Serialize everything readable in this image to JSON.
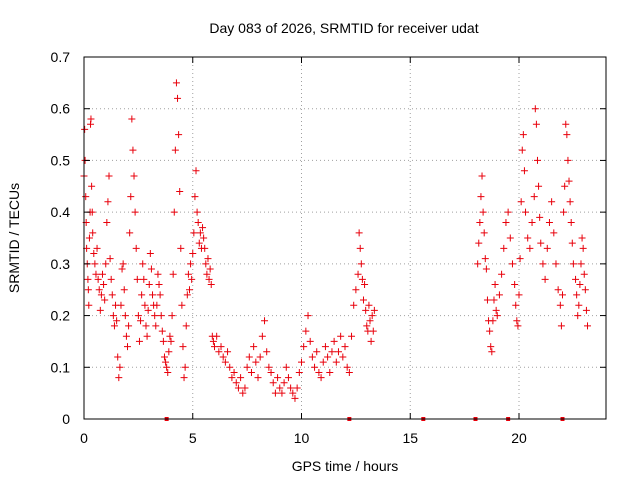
{
  "chart_data": {
    "type": "scatter",
    "title": "Day 083 of 2026, SRMTID for receiver udat",
    "xlabel": "GPS time / hours",
    "ylabel": "SRMTID / TECUs",
    "xlim": [
      0,
      24
    ],
    "ylim": [
      0,
      0.7
    ],
    "xticks": [
      0,
      5,
      10,
      15,
      20
    ],
    "xtick_labels": [
      "0",
      "5",
      "10",
      "15",
      "20"
    ],
    "yticks": [
      0,
      0.1,
      0.2,
      0.3,
      0.4,
      0.5,
      0.6,
      0.7
    ],
    "ytick_labels": [
      "0",
      "0.1",
      "0.2",
      "0.3",
      "0.4",
      "0.5",
      "0.6",
      "0.7"
    ],
    "grid": true,
    "marker": "+",
    "color": "#e8000b",
    "series": [
      {
        "name": "SRMTID",
        "points": [
          [
            0.0,
            0.47
          ],
          [
            0.03,
            0.56
          ],
          [
            0.05,
            0.5
          ],
          [
            0.08,
            0.43
          ],
          [
            0.1,
            0.38
          ],
          [
            0.12,
            0.33
          ],
          [
            0.15,
            0.3
          ],
          [
            0.18,
            0.27
          ],
          [
            0.2,
            0.25
          ],
          [
            0.22,
            0.22
          ],
          [
            0.25,
            0.35
          ],
          [
            0.28,
            0.4
          ],
          [
            0.3,
            0.57
          ],
          [
            0.32,
            0.58
          ],
          [
            0.35,
            0.45
          ],
          [
            0.38,
            0.4
          ],
          [
            0.4,
            0.36
          ],
          [
            0.45,
            0.32
          ],
          [
            0.5,
            0.3
          ],
          [
            0.55,
            0.28
          ],
          [
            0.6,
            0.33
          ],
          [
            0.65,
            0.27
          ],
          [
            0.7,
            0.25
          ],
          [
            0.75,
            0.21
          ],
          [
            0.8,
            0.24
          ],
          [
            0.85,
            0.28
          ],
          [
            0.9,
            0.26
          ],
          [
            0.95,
            0.23
          ],
          [
            1.0,
            0.3
          ],
          [
            1.05,
            0.38
          ],
          [
            1.1,
            0.42
          ],
          [
            1.15,
            0.47
          ],
          [
            1.2,
            0.31
          ],
          [
            1.25,
            0.27
          ],
          [
            1.3,
            0.24
          ],
          [
            1.35,
            0.2
          ],
          [
            1.4,
            0.18
          ],
          [
            1.45,
            0.22
          ],
          [
            1.5,
            0.19
          ],
          [
            1.55,
            0.12
          ],
          [
            1.6,
            0.08
          ],
          [
            1.65,
            0.1
          ],
          [
            1.7,
            0.22
          ],
          [
            1.75,
            0.29
          ],
          [
            1.8,
            0.3
          ],
          [
            1.85,
            0.25
          ],
          [
            1.9,
            0.2
          ],
          [
            1.95,
            0.16
          ],
          [
            2.0,
            0.14
          ],
          [
            2.05,
            0.18
          ],
          [
            2.1,
            0.36
          ],
          [
            2.15,
            0.43
          ],
          [
            2.2,
            0.58
          ],
          [
            2.25,
            0.52
          ],
          [
            2.3,
            0.47
          ],
          [
            2.35,
            0.4
          ],
          [
            2.4,
            0.33
          ],
          [
            2.45,
            0.27
          ],
          [
            2.5,
            0.2
          ],
          [
            2.55,
            0.15
          ],
          [
            2.6,
            0.19
          ],
          [
            2.65,
            0.24
          ],
          [
            2.7,
            0.3
          ],
          [
            2.75,
            0.27
          ],
          [
            2.8,
            0.22
          ],
          [
            2.85,
            0.18
          ],
          [
            2.9,
            0.16
          ],
          [
            2.95,
            0.21
          ],
          [
            3.0,
            0.26
          ],
          [
            3.05,
            0.32
          ],
          [
            3.1,
            0.29
          ],
          [
            3.15,
            0.24
          ],
          [
            3.2,
            0.22
          ],
          [
            3.25,
            0.2
          ],
          [
            3.3,
            0.18
          ],
          [
            3.35,
            0.22
          ],
          [
            3.4,
            0.28
          ],
          [
            3.45,
            0.26
          ],
          [
            3.5,
            0.24
          ],
          [
            3.55,
            0.2
          ],
          [
            3.6,
            0.17
          ],
          [
            3.65,
            0.15
          ],
          [
            3.7,
            0.12
          ],
          [
            3.75,
            0.11
          ],
          [
            3.8,
            0.1
          ],
          [
            3.85,
            0.09
          ],
          [
            3.9,
            0.13
          ],
          [
            3.95,
            0.16
          ],
          [
            4.0,
            0.15
          ],
          [
            4.05,
            0.2
          ],
          [
            4.1,
            0.28
          ],
          [
            4.15,
            0.4
          ],
          [
            4.2,
            0.52
          ],
          [
            4.25,
            0.65
          ],
          [
            4.3,
            0.62
          ],
          [
            4.35,
            0.55
          ],
          [
            4.4,
            0.44
          ],
          [
            4.45,
            0.33
          ],
          [
            4.5,
            0.22
          ],
          [
            4.55,
            0.14
          ],
          [
            4.6,
            0.08
          ],
          [
            4.65,
            0.1
          ],
          [
            4.7,
            0.18
          ],
          [
            4.75,
            0.24
          ],
          [
            4.8,
            0.28
          ],
          [
            4.85,
            0.25
          ],
          [
            4.9,
            0.3
          ],
          [
            4.95,
            0.27
          ],
          [
            5.0,
            0.32
          ],
          [
            5.05,
            0.36
          ],
          [
            5.1,
            0.43
          ],
          [
            5.15,
            0.48
          ],
          [
            5.2,
            0.4
          ],
          [
            5.25,
            0.38
          ],
          [
            5.3,
            0.34
          ],
          [
            5.35,
            0.36
          ],
          [
            5.4,
            0.33
          ],
          [
            5.45,
            0.37
          ],
          [
            5.5,
            0.35
          ],
          [
            5.55,
            0.33
          ],
          [
            5.6,
            0.3
          ],
          [
            5.65,
            0.28
          ],
          [
            5.7,
            0.31
          ],
          [
            5.75,
            0.27
          ],
          [
            5.8,
            0.29
          ],
          [
            5.85,
            0.26
          ],
          [
            5.9,
            0.16
          ],
          [
            5.95,
            0.15
          ],
          [
            6.0,
            0.14
          ],
          [
            6.1,
            0.16
          ],
          [
            6.2,
            0.13
          ],
          [
            6.3,
            0.14
          ],
          [
            6.4,
            0.12
          ],
          [
            6.5,
            0.11
          ],
          [
            6.6,
            0.13
          ],
          [
            6.7,
            0.1
          ],
          [
            6.8,
            0.08
          ],
          [
            6.9,
            0.09
          ],
          [
            7.0,
            0.07
          ],
          [
            7.1,
            0.06
          ],
          [
            7.2,
            0.08
          ],
          [
            7.3,
            0.05
          ],
          [
            7.4,
            0.06
          ],
          [
            7.5,
            0.1
          ],
          [
            7.6,
            0.12
          ],
          [
            7.7,
            0.09
          ],
          [
            7.8,
            0.14
          ],
          [
            7.9,
            0.11
          ],
          [
            8.0,
            0.08
          ],
          [
            8.1,
            0.12
          ],
          [
            8.2,
            0.16
          ],
          [
            8.3,
            0.19
          ],
          [
            8.4,
            0.13
          ],
          [
            8.5,
            0.1
          ],
          [
            8.6,
            0.09
          ],
          [
            8.7,
            0.07
          ],
          [
            8.8,
            0.05
          ],
          [
            8.9,
            0.08
          ],
          [
            9.0,
            0.06
          ],
          [
            9.1,
            0.05
          ],
          [
            9.2,
            0.07
          ],
          [
            9.3,
            0.1
          ],
          [
            9.4,
            0.08
          ],
          [
            9.5,
            0.06
          ],
          [
            9.6,
            0.05
          ],
          [
            9.7,
            0.04
          ],
          [
            9.8,
            0.06
          ],
          [
            9.9,
            0.09
          ],
          [
            10.0,
            0.11
          ],
          [
            10.1,
            0.14
          ],
          [
            10.2,
            0.17
          ],
          [
            10.3,
            0.2
          ],
          [
            10.4,
            0.15
          ],
          [
            10.5,
            0.12
          ],
          [
            10.6,
            0.1
          ],
          [
            10.7,
            0.13
          ],
          [
            10.8,
            0.09
          ],
          [
            10.9,
            0.08
          ],
          [
            11.0,
            0.11
          ],
          [
            11.1,
            0.14
          ],
          [
            11.2,
            0.12
          ],
          [
            11.3,
            0.09
          ],
          [
            11.4,
            0.13
          ],
          [
            11.5,
            0.15
          ],
          [
            11.6,
            0.11
          ],
          [
            11.7,
            0.13
          ],
          [
            11.8,
            0.16
          ],
          [
            11.9,
            0.12
          ],
          [
            12.0,
            0.14
          ],
          [
            12.1,
            0.1
          ],
          [
            12.2,
            0.09
          ],
          [
            12.3,
            0.16
          ],
          [
            12.4,
            0.22
          ],
          [
            12.5,
            0.25
          ],
          [
            12.6,
            0.28
          ],
          [
            12.65,
            0.36
          ],
          [
            12.7,
            0.33
          ],
          [
            12.75,
            0.3
          ],
          [
            12.8,
            0.27
          ],
          [
            12.85,
            0.23
          ],
          [
            12.9,
            0.26
          ],
          [
            12.95,
            0.21
          ],
          [
            13.0,
            0.18
          ],
          [
            13.05,
            0.17
          ],
          [
            13.1,
            0.22
          ],
          [
            13.15,
            0.19
          ],
          [
            13.2,
            0.15
          ],
          [
            13.25,
            0.2
          ],
          [
            13.3,
            0.17
          ],
          [
            13.35,
            0.21
          ],
          [
            18.1,
            0.3
          ],
          [
            18.15,
            0.34
          ],
          [
            18.2,
            0.38
          ],
          [
            18.25,
            0.43
          ],
          [
            18.3,
            0.47
          ],
          [
            18.35,
            0.4
          ],
          [
            18.4,
            0.36
          ],
          [
            18.45,
            0.31
          ],
          [
            18.5,
            0.29
          ],
          [
            18.55,
            0.23
          ],
          [
            18.6,
            0.19
          ],
          [
            18.65,
            0.17
          ],
          [
            18.7,
            0.14
          ],
          [
            18.75,
            0.13
          ],
          [
            18.8,
            0.19
          ],
          [
            18.85,
            0.23
          ],
          [
            18.9,
            0.26
          ],
          [
            18.95,
            0.21
          ],
          [
            19.0,
            0.2
          ],
          [
            19.1,
            0.24
          ],
          [
            19.2,
            0.28
          ],
          [
            19.3,
            0.33
          ],
          [
            19.4,
            0.38
          ],
          [
            19.5,
            0.4
          ],
          [
            19.6,
            0.35
          ],
          [
            19.7,
            0.3
          ],
          [
            19.8,
            0.26
          ],
          [
            19.85,
            0.22
          ],
          [
            19.9,
            0.19
          ],
          [
            19.95,
            0.18
          ],
          [
            20.0,
            0.24
          ],
          [
            20.05,
            0.31
          ],
          [
            20.1,
            0.42
          ],
          [
            20.15,
            0.52
          ],
          [
            20.2,
            0.55
          ],
          [
            20.25,
            0.48
          ],
          [
            20.3,
            0.4
          ],
          [
            20.4,
            0.35
          ],
          [
            20.5,
            0.33
          ],
          [
            20.6,
            0.38
          ],
          [
            20.7,
            0.43
          ],
          [
            20.75,
            0.6
          ],
          [
            20.8,
            0.57
          ],
          [
            20.85,
            0.5
          ],
          [
            20.9,
            0.45
          ],
          [
            20.95,
            0.39
          ],
          [
            21.0,
            0.34
          ],
          [
            21.1,
            0.3
          ],
          [
            21.2,
            0.27
          ],
          [
            21.3,
            0.33
          ],
          [
            21.4,
            0.38
          ],
          [
            21.5,
            0.42
          ],
          [
            21.6,
            0.36
          ],
          [
            21.7,
            0.3
          ],
          [
            21.8,
            0.25
          ],
          [
            21.9,
            0.22
          ],
          [
            21.95,
            0.18
          ],
          [
            22.0,
            0.24
          ],
          [
            22.05,
            0.4
          ],
          [
            22.1,
            0.45
          ],
          [
            22.15,
            0.57
          ],
          [
            22.2,
            0.55
          ],
          [
            22.25,
            0.5
          ],
          [
            22.3,
            0.46
          ],
          [
            22.35,
            0.42
          ],
          [
            22.4,
            0.38
          ],
          [
            22.45,
            0.34
          ],
          [
            22.5,
            0.3
          ],
          [
            22.6,
            0.27
          ],
          [
            22.65,
            0.24
          ],
          [
            22.7,
            0.2
          ],
          [
            22.75,
            0.22
          ],
          [
            22.8,
            0.26
          ],
          [
            22.85,
            0.3
          ],
          [
            22.9,
            0.35
          ],
          [
            22.95,
            0.33
          ],
          [
            23.0,
            0.28
          ],
          [
            23.05,
            0.25
          ],
          [
            23.1,
            0.21
          ],
          [
            23.15,
            0.18
          ]
        ]
      }
    ],
    "baseline_markers_x": [
      3.8,
      12.2,
      15.6,
      18.0,
      19.5,
      22.0
    ]
  }
}
